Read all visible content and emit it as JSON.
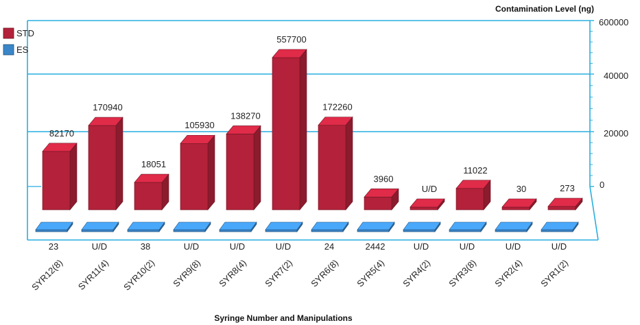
{
  "chart_data": {
    "type": "bar",
    "title": "",
    "ylabel": "Contamination Level (ng)",
    "xlabel": "Syringe Number and Manipulations",
    "y_ticks": [
      "600000",
      "40000",
      "20000",
      "0"
    ],
    "legend": {
      "placement": "top-left"
    },
    "categories": [
      "SYR12(8)",
      "SYR11(4)",
      "SYR10(2)",
      "SYR9(8)",
      "SYR8(4)",
      "SYR7(2)",
      "SYR6(8)",
      "SYR5(4)",
      "SYR4(2)",
      "SYR3(8)",
      "SYR2(4)",
      "SYR1(2)"
    ],
    "series": [
      {
        "name": "STD",
        "color": "#b3223a",
        "values": [
          82170,
          170940,
          18051,
          105930,
          138270,
          557700,
          172260,
          3960,
          null,
          11022,
          30,
          273
        ],
        "labels": [
          "82170",
          "170940",
          "18051",
          "105930",
          "138270",
          "557700",
          "172260",
          "3960",
          "U/D",
          "11022",
          "30",
          "273"
        ]
      },
      {
        "name": "ES",
        "color": "#3a86c8",
        "values": [
          23,
          null,
          38,
          null,
          null,
          null,
          24,
          2442,
          null,
          null,
          null,
          null
        ],
        "labels": [
          "23",
          "U/D",
          "38",
          "U/D",
          "U/D",
          "U/D",
          "24",
          "2442",
          "U/D",
          "U/D",
          "U/D",
          "U/D"
        ]
      }
    ]
  }
}
